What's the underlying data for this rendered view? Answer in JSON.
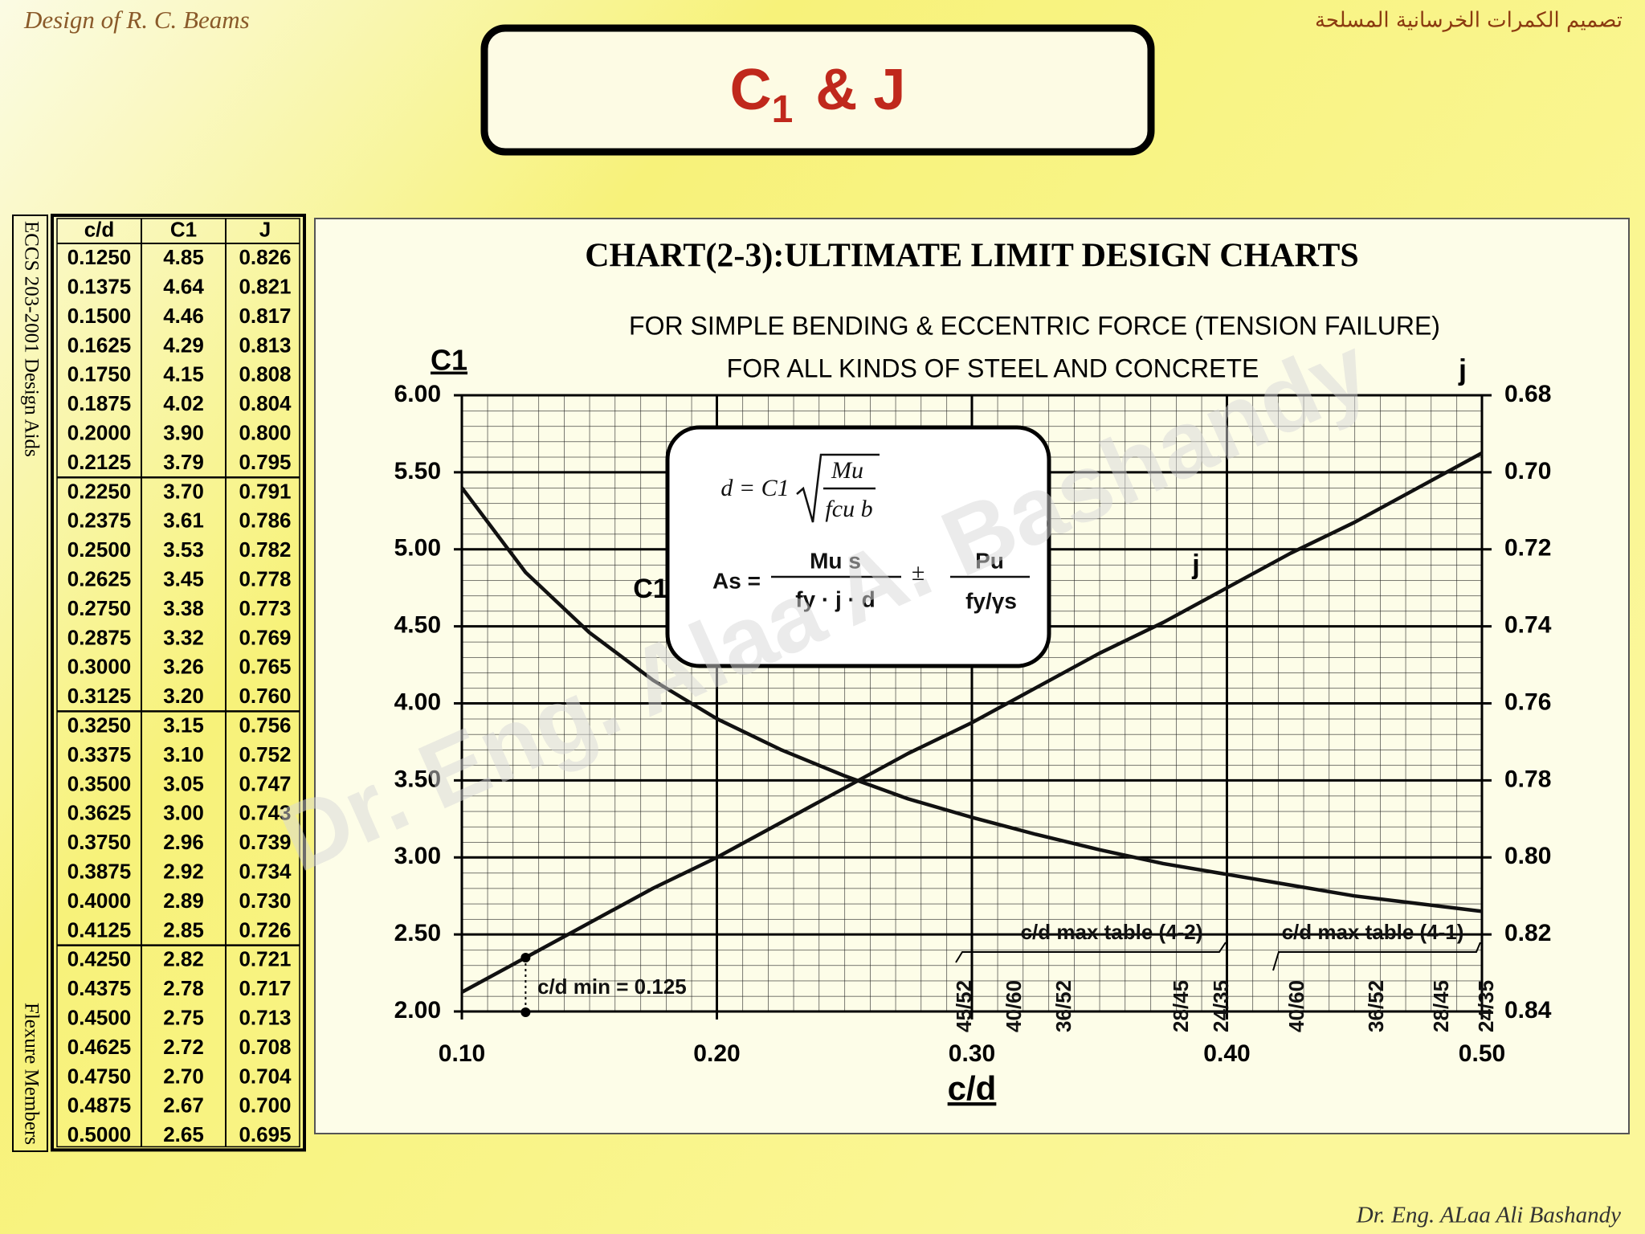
{
  "header": {
    "left": "Design of R. C. Beams",
    "right": "تصميم الكمرات الخرسانية المسلحة"
  },
  "title": {
    "symbol": "C",
    "subscript": "1",
    "rest": "& J"
  },
  "side_labels": {
    "top": "ECCS 203-2001 Design Aids",
    "bottom": "Flexure Members"
  },
  "table": {
    "header": [
      "c/d",
      "C1",
      "J"
    ],
    "rows": [
      [
        "0.1250",
        "4.85",
        "0.826"
      ],
      [
        "0.1375",
        "4.64",
        "0.821"
      ],
      [
        "0.1500",
        "4.46",
        "0.817"
      ],
      [
        "0.1625",
        "4.29",
        "0.813"
      ],
      [
        "0.1750",
        "4.15",
        "0.808"
      ],
      [
        "0.1875",
        "4.02",
        "0.804"
      ],
      [
        "0.2000",
        "3.90",
        "0.800"
      ],
      [
        "0.2125",
        "3.79",
        "0.795"
      ],
      [
        "0.2250",
        "3.70",
        "0.791"
      ],
      [
        "0.2375",
        "3.61",
        "0.786"
      ],
      [
        "0.2500",
        "3.53",
        "0.782"
      ],
      [
        "0.2625",
        "3.45",
        "0.778"
      ],
      [
        "0.2750",
        "3.38",
        "0.773"
      ],
      [
        "0.2875",
        "3.32",
        "0.769"
      ],
      [
        "0.3000",
        "3.26",
        "0.765"
      ],
      [
        "0.3125",
        "3.20",
        "0.760"
      ],
      [
        "0.3250",
        "3.15",
        "0.756"
      ],
      [
        "0.3375",
        "3.10",
        "0.752"
      ],
      [
        "0.3500",
        "3.05",
        "0.747"
      ],
      [
        "0.3625",
        "3.00",
        "0.743"
      ],
      [
        "0.3750",
        "2.96",
        "0.739"
      ],
      [
        "0.3875",
        "2.92",
        "0.734"
      ],
      [
        "0.4000",
        "2.89",
        "0.730"
      ],
      [
        "0.4125",
        "2.85",
        "0.726"
      ],
      [
        "0.4250",
        "2.82",
        "0.721"
      ],
      [
        "0.4375",
        "2.78",
        "0.717"
      ],
      [
        "0.4500",
        "2.75",
        "0.713"
      ],
      [
        "0.4625",
        "2.72",
        "0.708"
      ],
      [
        "0.4750",
        "2.70",
        "0.704"
      ],
      [
        "0.4875",
        "2.67",
        "0.700"
      ],
      [
        "0.5000",
        "2.65",
        "0.695"
      ]
    ]
  },
  "chart_data": {
    "type": "line",
    "title": "CHART(2-3):ULTIMATE LIMIT DESIGN CHARTS",
    "subtitle": [
      "FOR SIMPLE BENDING & ECCENTRIC FORCE (TENSION FAILURE)",
      "FOR ALL KINDS OF STEEL AND CONCRETE"
    ],
    "x_label": "c/d",
    "y_label": "C1",
    "y2_label": "j",
    "x": [
      0.1,
      0.125,
      0.15,
      0.175,
      0.2,
      0.225,
      0.25,
      0.275,
      0.3,
      0.325,
      0.35,
      0.375,
      0.4,
      0.425,
      0.45,
      0.475,
      0.5
    ],
    "series": [
      {
        "name": "C1",
        "color": "#111111",
        "values": [
          5.4,
          4.85,
          4.46,
          4.15,
          3.9,
          3.7,
          3.53,
          3.38,
          3.26,
          3.15,
          3.05,
          2.96,
          2.89,
          2.82,
          2.75,
          2.7,
          2.65
        ]
      },
      {
        "name": "j",
        "color": "#111111",
        "axis": "y2",
        "values": [
          0.835,
          0.826,
          0.817,
          0.808,
          0.8,
          0.791,
          0.782,
          0.773,
          0.765,
          0.756,
          0.747,
          0.739,
          0.73,
          0.721,
          0.713,
          0.704,
          0.695
        ]
      }
    ],
    "xlim": [
      0.1,
      0.5
    ],
    "xticks": [
      {
        "value": 0.1,
        "label": "0.10"
      },
      {
        "value": 0.2,
        "label": "0.20"
      },
      {
        "value": 0.3,
        "label": "0.30"
      },
      {
        "value": 0.4,
        "label": "0.40"
      },
      {
        "value": 0.5,
        "label": "0.50"
      }
    ],
    "ylim": [
      2,
      6
    ],
    "yticks": [
      {
        "value": 2,
        "label": "2.00"
      },
      {
        "value": 2.5,
        "label": "2.50"
      },
      {
        "value": 3,
        "label": "3.00"
      },
      {
        "value": 3.5,
        "label": "3.50"
      },
      {
        "value": 4,
        "label": "4.00"
      },
      {
        "value": 4.5,
        "label": "4.50"
      },
      {
        "value": 5,
        "label": "5.00"
      },
      {
        "value": 5.5,
        "label": "5.50"
      },
      {
        "value": 6,
        "label": "6.00"
      }
    ],
    "y2lim": [
      0.84,
      0.68
    ],
    "y2ticks": [
      {
        "value": 0.84,
        "label": "0.84"
      },
      {
        "value": 0.82,
        "label": "0.82"
      },
      {
        "value": 0.8,
        "label": "0.80"
      },
      {
        "value": 0.78,
        "label": "0.78"
      },
      {
        "value": 0.76,
        "label": "0.76"
      },
      {
        "value": 0.74,
        "label": "0.74"
      },
      {
        "value": 0.72,
        "label": "0.72"
      },
      {
        "value": 0.7,
        "label": "0.70"
      },
      {
        "value": 0.68,
        "label": "0.68"
      }
    ],
    "grid": true,
    "annotations": {
      "cd_min": "c/d min = 0.125",
      "max_42": "c/d max table (4-2)",
      "max_41": "c/d max table (4-1)",
      "grades_42": [
        "45/52",
        "40/60",
        "36/52",
        "28/45",
        "24/35"
      ],
      "grades_41": [
        "40/60",
        "36/52",
        "28/45",
        "24/35"
      ]
    }
  },
  "formula": {
    "d_lhs": "d = C1",
    "d_num": "Mu",
    "d_den": "fcu b",
    "as_lhs": "As =",
    "as_num": "Mu s",
    "as_den": "fy · j · d",
    "pm": "±",
    "p_num": "Pu",
    "p_den": "fy/γs"
  },
  "watermark": "Dr. Eng. Alaa A. Bashandy",
  "footer": "Dr. Eng. ALaa Ali Bashandy"
}
